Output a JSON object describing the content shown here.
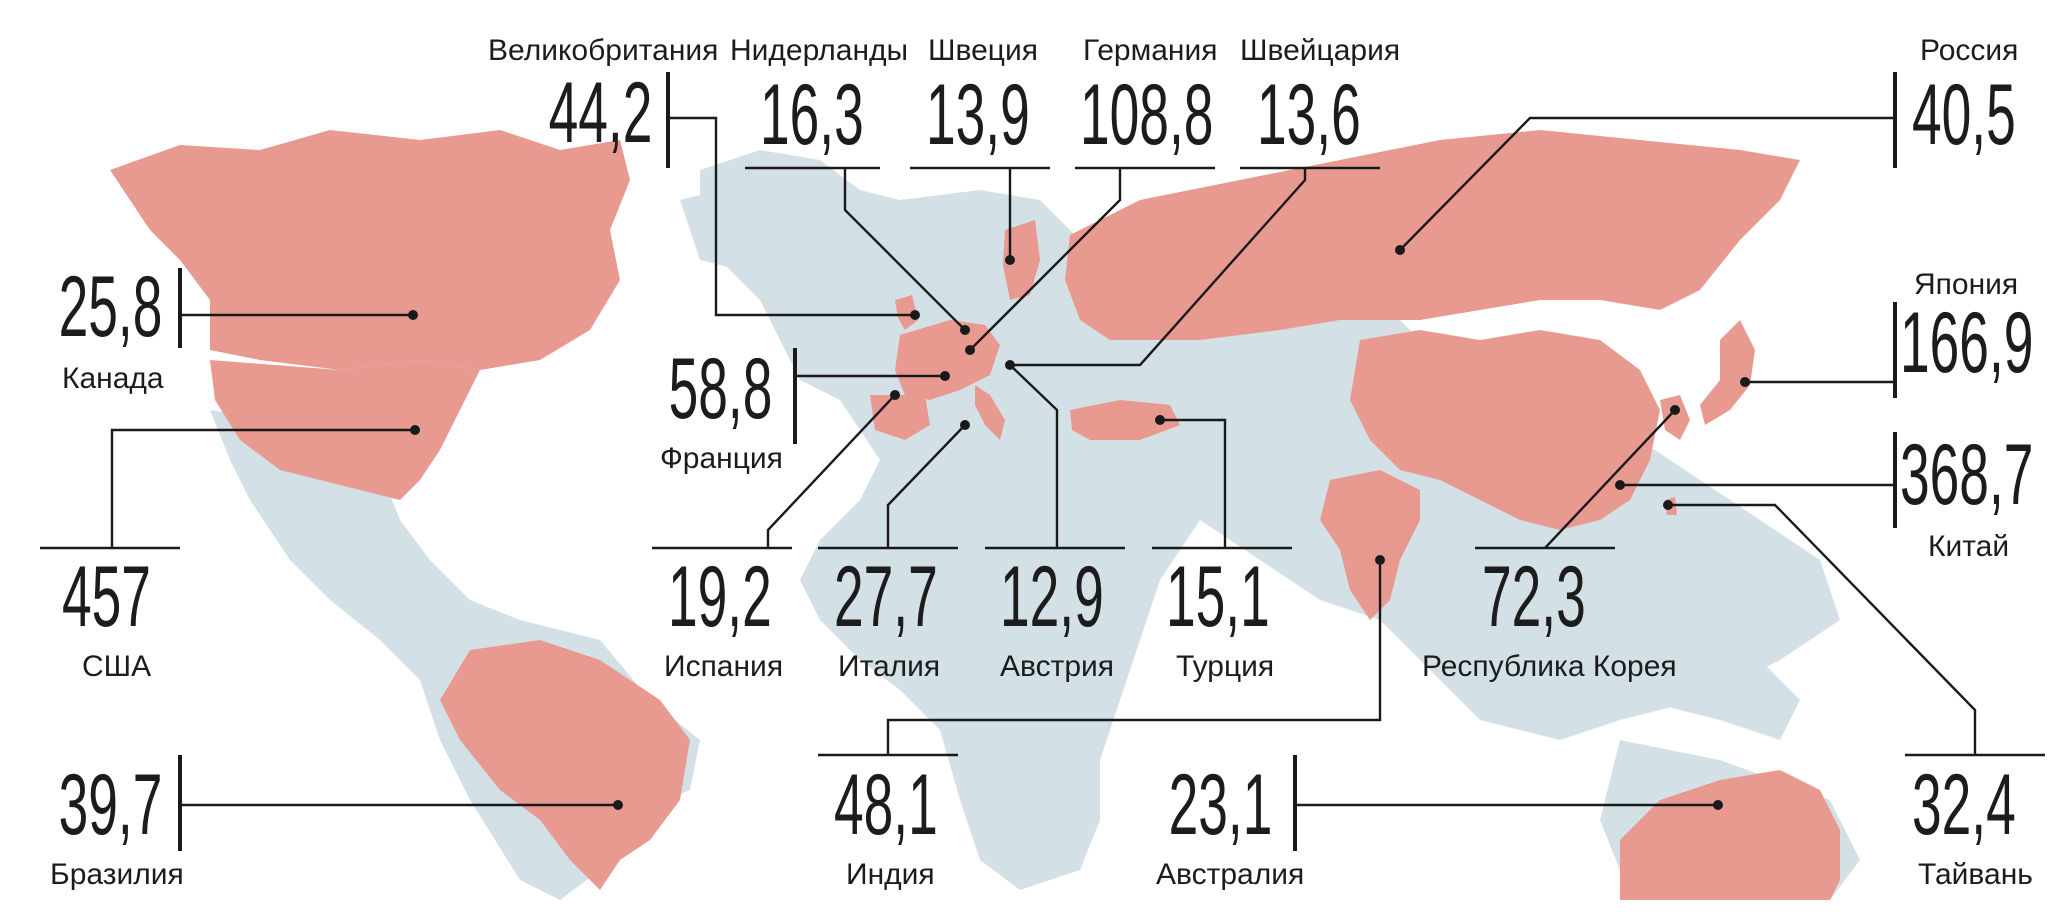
{
  "map": {
    "base_color": "#d3e1e6",
    "highlight_color": "#e89a90",
    "line_color": "#1a1a1a",
    "countries": [
      {
        "id": "uk",
        "name": "Великобритания",
        "value": "44,2"
      },
      {
        "id": "nl",
        "name": "Нидерланды",
        "value": "16,3"
      },
      {
        "id": "se",
        "name": "Швеция",
        "value": "13,9"
      },
      {
        "id": "de",
        "name": "Германия",
        "value": "108,8"
      },
      {
        "id": "ch",
        "name": "Швейцария",
        "value": "13,6"
      },
      {
        "id": "ru",
        "name": "Россия",
        "value": "40,5"
      },
      {
        "id": "ca",
        "name": "Канада",
        "value": "25,8"
      },
      {
        "id": "fr",
        "name": "Франция",
        "value": "58,8"
      },
      {
        "id": "jp",
        "name": "Япония",
        "value": "166,9"
      },
      {
        "id": "cn",
        "name": "Китай",
        "value": "368,7"
      },
      {
        "id": "us",
        "name": "США",
        "value": "457"
      },
      {
        "id": "es",
        "name": "Испания",
        "value": "19,2"
      },
      {
        "id": "it",
        "name": "Италия",
        "value": "27,7"
      },
      {
        "id": "at",
        "name": "Австрия",
        "value": "12,9"
      },
      {
        "id": "tr",
        "name": "Турция",
        "value": "15,1"
      },
      {
        "id": "kr",
        "name": "Республика Корея",
        "value": "72,3"
      },
      {
        "id": "br",
        "name": "Бразилия",
        "value": "39,7"
      },
      {
        "id": "in",
        "name": "Индия",
        "value": "48,1"
      },
      {
        "id": "au",
        "name": "Австралия",
        "value": "23,1"
      },
      {
        "id": "tw",
        "name": "Тайвань",
        "value": "32,4"
      }
    ]
  }
}
